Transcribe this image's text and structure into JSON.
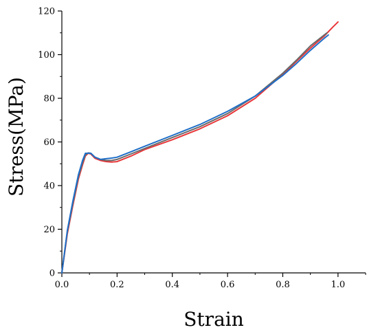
{
  "chart_data": {
    "type": "line",
    "title": "",
    "xlabel": "Strain",
    "ylabel": "Stress(MPa)",
    "xlim": [
      0,
      1.1
    ],
    "ylim": [
      0,
      120
    ],
    "x_ticks": [
      "0.0",
      "0.2",
      "0.4",
      "0.6",
      "0.8",
      "1.0"
    ],
    "y_ticks": [
      "0",
      "20",
      "40",
      "60",
      "80",
      "100",
      "120"
    ],
    "grid": false,
    "legend": "none",
    "series": [
      {
        "color": "#e8373a",
        "x": [
          0,
          0.02,
          0.04,
          0.06,
          0.075,
          0.085,
          0.095,
          0.105,
          0.12,
          0.14,
          0.16,
          0.18,
          0.2,
          0.25,
          0.3,
          0.4,
          0.5,
          0.6,
          0.7,
          0.8,
          0.85,
          0.9,
          0.95,
          0.98,
          1.0
        ],
        "y": [
          0,
          18,
          31,
          43,
          49.5,
          53.5,
          54.8,
          54.5,
          52.5,
          51.5,
          51,
          50.8,
          51,
          53.5,
          56.5,
          61,
          66,
          72,
          80,
          91,
          97,
          103,
          108.5,
          112.5,
          115
        ]
      },
      {
        "color": "#6a6a6a",
        "x": [
          0,
          0.02,
          0.04,
          0.06,
          0.075,
          0.085,
          0.095,
          0.105,
          0.12,
          0.14,
          0.16,
          0.18,
          0.2,
          0.25,
          0.3,
          0.4,
          0.5,
          0.6,
          0.7,
          0.8,
          0.85,
          0.9,
          0.95,
          0.96
        ],
        "y": [
          0,
          19,
          32,
          44,
          50.5,
          54,
          55,
          54.8,
          53,
          52,
          51.5,
          51.5,
          52,
          54.5,
          57,
          62,
          67,
          73,
          81,
          91.5,
          97.5,
          104,
          109,
          110
        ]
      },
      {
        "color": "#1f6fc8",
        "x": [
          0,
          0.02,
          0.04,
          0.06,
          0.075,
          0.085,
          0.095,
          0.105,
          0.12,
          0.14,
          0.16,
          0.18,
          0.2,
          0.25,
          0.3,
          0.4,
          0.5,
          0.6,
          0.7,
          0.8,
          0.85,
          0.9,
          0.95,
          0.965
        ],
        "y": [
          0,
          19.5,
          33,
          45,
          51.5,
          54.8,
          54.8,
          54.8,
          53,
          52,
          52.3,
          52.6,
          53,
          55.5,
          58,
          63,
          68,
          74,
          81,
          90.5,
          96,
          102,
          107.5,
          109
        ]
      }
    ]
  }
}
